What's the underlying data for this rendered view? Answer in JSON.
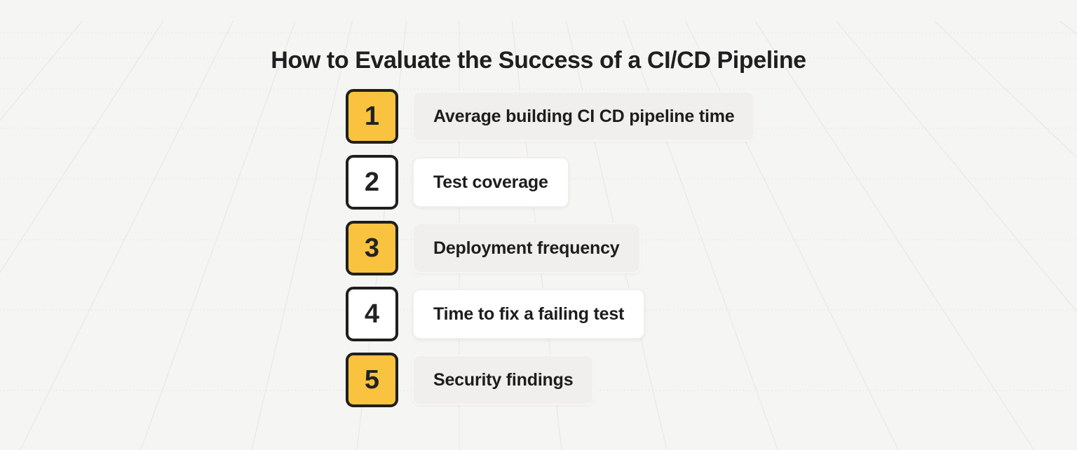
{
  "title": "How to Evaluate the Success of a CI/CD Pipeline",
  "colors": {
    "background": "#f5f5f3",
    "accent_yellow": "#f9c340",
    "ink": "#1f1f1f",
    "card_gray": "#f0efed",
    "card_white": "#ffffff"
  },
  "items": [
    {
      "number": "1",
      "label": "Average building CI CD pipeline time",
      "number_style": "yellow",
      "label_style": "gray"
    },
    {
      "number": "2",
      "label": "Test coverage",
      "number_style": "white",
      "label_style": "white"
    },
    {
      "number": "3",
      "label": "Deployment frequency",
      "number_style": "yellow",
      "label_style": "gray"
    },
    {
      "number": "4",
      "label": "Time to fix a failing test",
      "number_style": "white",
      "label_style": "white"
    },
    {
      "number": "5",
      "label": "Security findings",
      "number_style": "yellow",
      "label_style": "gray"
    }
  ]
}
